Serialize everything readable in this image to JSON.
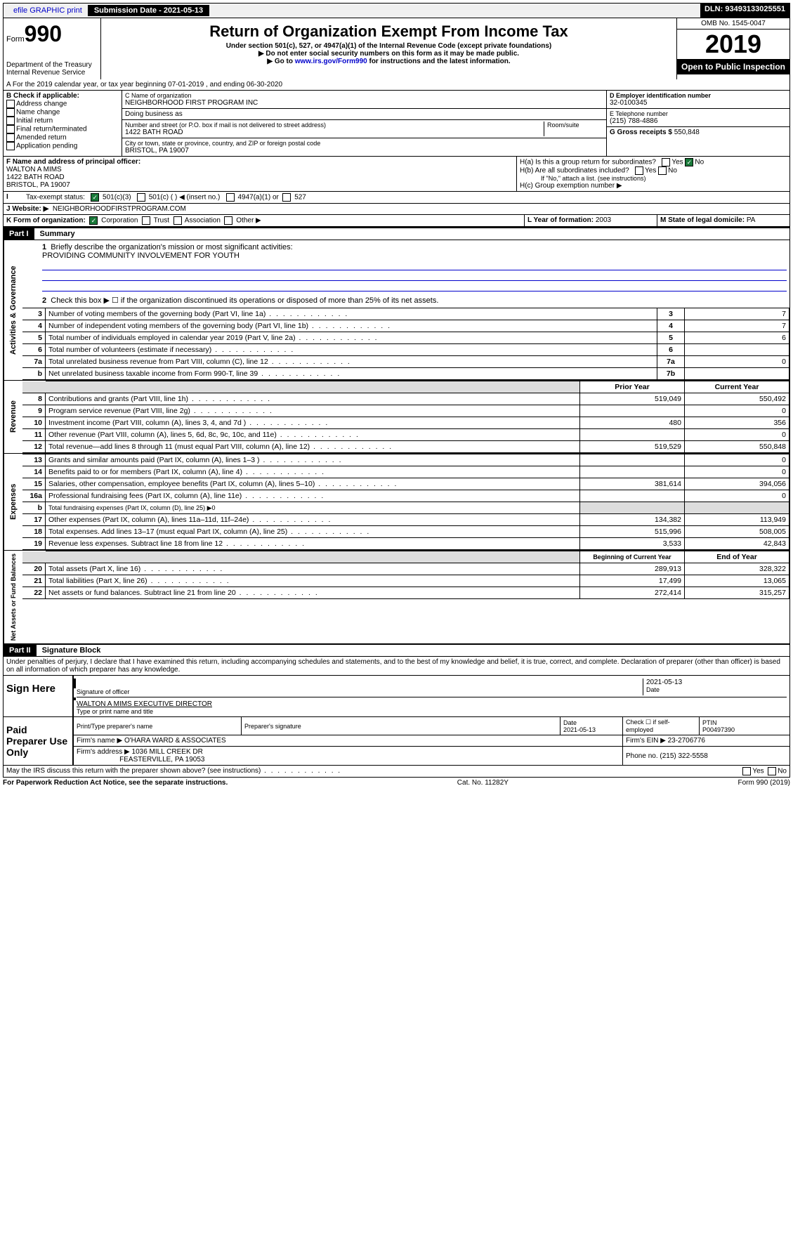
{
  "top": {
    "efile": "efile GRAPHIC print",
    "submission_label": "Submission Date - 2021-05-13",
    "dln": "DLN: 93493133025551"
  },
  "header": {
    "form_label": "Form",
    "form_num": "990",
    "title": "Return of Organization Exempt From Income Tax",
    "subtitle": "Under section 501(c), 527, or 4947(a)(1) of the Internal Revenue Code (except private foundations)",
    "note1": "▶ Do not enter social security numbers on this form as it may be made public.",
    "note2_pre": "▶ Go to ",
    "note2_link": "www.irs.gov/Form990",
    "note2_post": " for instructions and the latest information.",
    "dept": "Department of the Treasury\nInternal Revenue Service",
    "omb": "OMB No. 1545-0047",
    "year": "2019",
    "open": "Open to Public Inspection"
  },
  "row_a": "A For the 2019 calendar year, or tax year beginning 07-01-2019    , and ending 06-30-2020",
  "box_b": {
    "label": "B Check if applicable:",
    "items": [
      "Address change",
      "Name change",
      "Initial return",
      "Final return/terminated",
      "Amended return",
      "Application pending"
    ]
  },
  "box_c": {
    "name_label": "C Name of organization",
    "name": "NEIGHBORHOOD FIRST PROGRAM INC",
    "dba": "Doing business as",
    "addr_label": "Number and street (or P.O. box if mail is not delivered to street address)",
    "room": "Room/suite",
    "addr": "1422 BATH ROAD",
    "city_label": "City or town, state or province, country, and ZIP or foreign postal code",
    "city": "BRISTOL, PA  19007"
  },
  "box_d": {
    "ein_label": "D Employer identification number",
    "ein": "32-0100345",
    "phone_label": "E Telephone number",
    "phone": "(215) 788-4886",
    "gross_label": "G Gross receipts $ ",
    "gross": "550,848"
  },
  "box_f": {
    "label": "F Name and address of principal officer:",
    "name": "WALTON A MIMS",
    "addr1": "1422 BATH ROAD",
    "addr2": "BRISTOL, PA  19007"
  },
  "box_h": {
    "ha": "H(a)  Is this a group return for subordinates?",
    "hb": "H(b)  Are all subordinates included?",
    "hb_note": "If \"No,\" attach a list. (see instructions)",
    "hc": "H(c)  Group exemption number ▶"
  },
  "row_i": {
    "label": "Tax-exempt status:",
    "opt1": "501(c)(3)",
    "opt2": "501(c) (   ) ◀ (insert no.)",
    "opt3": "4947(a)(1) or",
    "opt4": "527"
  },
  "row_j": {
    "label": "J   Website: ▶",
    "val": "NEIGHBORHOODFIRSTPROGRAM.COM"
  },
  "row_k": {
    "label": "K Form of organization:",
    "opts": [
      "Corporation",
      "Trust",
      "Association",
      "Other ▶"
    ],
    "l_label": "L Year of formation: ",
    "l_val": "2003",
    "m_label": "M State of legal domicile: ",
    "m_val": "PA"
  },
  "part1": {
    "header": "Part I",
    "title": "Summary",
    "q1": "Briefly describe the organization's mission or most significant activities:",
    "mission": "PROVIDING COMMUNITY INVOLVEMENT FOR YOUTH",
    "q2": "Check this box ▶ ☐  if the organization discontinued its operations or disposed of more than 25% of its net assets."
  },
  "governance": {
    "label": "Activities & Governance",
    "rows": [
      {
        "n": "3",
        "desc": "Number of voting members of the governing body (Part VI, line 1a)",
        "c": "3",
        "v": "7"
      },
      {
        "n": "4",
        "desc": "Number of independent voting members of the governing body (Part VI, line 1b)",
        "c": "4",
        "v": "7"
      },
      {
        "n": "5",
        "desc": "Total number of individuals employed in calendar year 2019 (Part V, line 2a)",
        "c": "5",
        "v": "6"
      },
      {
        "n": "6",
        "desc": "Total number of volunteers (estimate if necessary)",
        "c": "6",
        "v": ""
      },
      {
        "n": "7a",
        "desc": "Total unrelated business revenue from Part VIII, column (C), line 12",
        "c": "7a",
        "v": "0"
      },
      {
        "n": "b",
        "desc": "Net unrelated business taxable income from Form 990-T, line 39",
        "c": "7b",
        "v": ""
      }
    ]
  },
  "revenue": {
    "label": "Revenue",
    "header_prior": "Prior Year",
    "header_current": "Current Year",
    "rows": [
      {
        "n": "8",
        "desc": "Contributions and grants (Part VIII, line 1h)",
        "p": "519,049",
        "c": "550,492"
      },
      {
        "n": "9",
        "desc": "Program service revenue (Part VIII, line 2g)",
        "p": "",
        "c": "0"
      },
      {
        "n": "10",
        "desc": "Investment income (Part VIII, column (A), lines 3, 4, and 7d )",
        "p": "480",
        "c": "356"
      },
      {
        "n": "11",
        "desc": "Other revenue (Part VIII, column (A), lines 5, 6d, 8c, 9c, 10c, and 11e)",
        "p": "",
        "c": "0"
      },
      {
        "n": "12",
        "desc": "Total revenue—add lines 8 through 11 (must equal Part VIII, column (A), line 12)",
        "p": "519,529",
        "c": "550,848"
      }
    ]
  },
  "expenses": {
    "label": "Expenses",
    "rows": [
      {
        "n": "13",
        "desc": "Grants and similar amounts paid (Part IX, column (A), lines 1–3 )",
        "p": "",
        "c": "0"
      },
      {
        "n": "14",
        "desc": "Benefits paid to or for members (Part IX, column (A), line 4)",
        "p": "",
        "c": "0"
      },
      {
        "n": "15",
        "desc": "Salaries, other compensation, employee benefits (Part IX, column (A), lines 5–10)",
        "p": "381,614",
        "c": "394,056"
      },
      {
        "n": "16a",
        "desc": "Professional fundraising fees (Part IX, column (A), line 11e)",
        "p": "",
        "c": "0"
      },
      {
        "n": "b",
        "desc": "Total fundraising expenses (Part IX, column (D), line 25) ▶0",
        "p": null,
        "c": null
      },
      {
        "n": "17",
        "desc": "Other expenses (Part IX, column (A), lines 11a–11d, 11f–24e)",
        "p": "134,382",
        "c": "113,949"
      },
      {
        "n": "18",
        "desc": "Total expenses. Add lines 13–17 (must equal Part IX, column (A), line 25)",
        "p": "515,996",
        "c": "508,005"
      },
      {
        "n": "19",
        "desc": "Revenue less expenses. Subtract line 18 from line 12",
        "p": "3,533",
        "c": "42,843"
      }
    ]
  },
  "netassets": {
    "label": "Net Assets or Fund Balances",
    "header_begin": "Beginning of Current Year",
    "header_end": "End of Year",
    "rows": [
      {
        "n": "20",
        "desc": "Total assets (Part X, line 16)",
        "p": "289,913",
        "c": "328,322"
      },
      {
        "n": "21",
        "desc": "Total liabilities (Part X, line 26)",
        "p": "17,499",
        "c": "13,065"
      },
      {
        "n": "22",
        "desc": "Net assets or fund balances. Subtract line 21 from line 20",
        "p": "272,414",
        "c": "315,257"
      }
    ]
  },
  "part2": {
    "header": "Part II",
    "title": "Signature Block",
    "perjury": "Under penalties of perjury, I declare that I have examined this return, including accompanying schedules and statements, and to the best of my knowledge and belief, it is true, correct, and complete. Declaration of preparer (other than officer) is based on all information of which preparer has any knowledge."
  },
  "sign": {
    "label": "Sign Here",
    "sig_officer": "Signature of officer",
    "date": "2021-05-13",
    "date_label": "Date",
    "name": "WALTON A MIMS  EXECUTIVE DIRECTOR",
    "name_label": "Type or print name and title"
  },
  "paid": {
    "label": "Paid Preparer Use Only",
    "h1": "Print/Type preparer's name",
    "h2": "Preparer's signature",
    "h3": "Date",
    "h3v": "2021-05-13",
    "h4": "Check ☐ if self-employed",
    "h5": "PTIN",
    "h5v": "P00497390",
    "firm_label": "Firm's name    ▶",
    "firm": "O'HARA WARD & ASSOCIATES",
    "ein_label": "Firm's EIN ▶",
    "ein": "23-2706776",
    "addr_label": "Firm's address ▶",
    "addr1": "1036 MILL CREEK DR",
    "addr2": "FEASTERVILLE, PA  19053",
    "phone_label": "Phone no. ",
    "phone": "(215) 322-5558"
  },
  "discuss": "May the IRS discuss this return with the preparer shown above? (see instructions)",
  "footer": {
    "left": "For Paperwork Reduction Act Notice, see the separate instructions.",
    "mid": "Cat. No. 11282Y",
    "right": "Form 990 (2019)"
  }
}
